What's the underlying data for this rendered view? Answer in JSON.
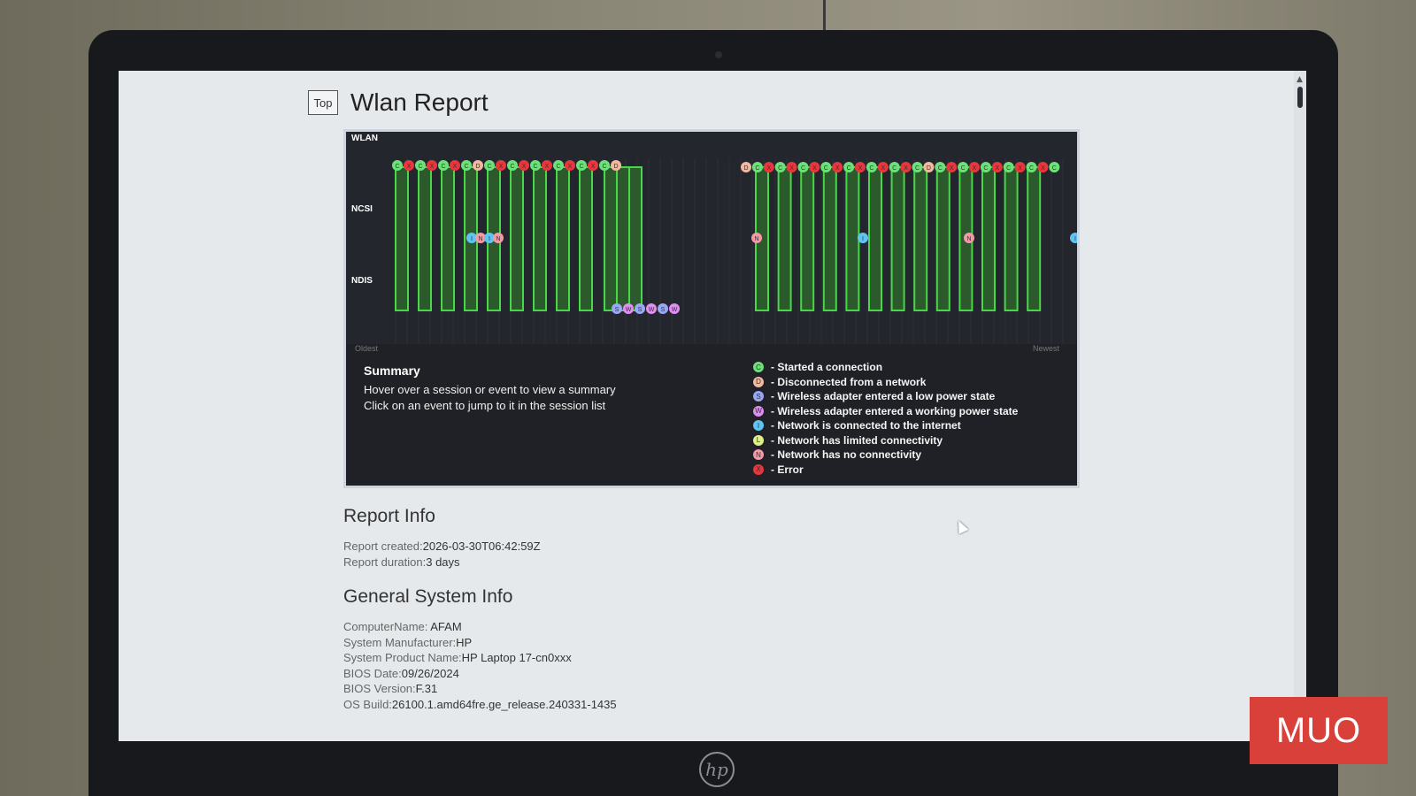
{
  "header": {
    "top_button": "Top",
    "title": "Wlan Report"
  },
  "chart": {
    "row_labels": {
      "wlan": "WLAN",
      "ncsi": "NCSI",
      "ndis": "NDIS"
    },
    "axis": {
      "oldest": "Oldest",
      "newest": "Newest"
    },
    "left_events_wlan": [
      "C",
      "X",
      "C",
      "X",
      "C",
      "X",
      "C",
      "D",
      "C",
      "X",
      "C",
      "X",
      "C",
      "X",
      "C",
      "X",
      "C",
      "X",
      "C",
      "D"
    ],
    "left_events_ncsi": [
      "I",
      "N",
      "I",
      "N"
    ],
    "left_events_ndis": [
      "S",
      "W",
      "S",
      "W",
      "S",
      "W"
    ],
    "right_events_wlan": [
      "D",
      "C",
      "X",
      "C",
      "X",
      "C",
      "X",
      "C",
      "X",
      "C",
      "X",
      "C",
      "X",
      "C",
      "X",
      "C",
      "D",
      "C",
      "X",
      "C",
      "X",
      "C",
      "X",
      "C",
      "X",
      "C",
      "X",
      "C"
    ],
    "right_events_ncsi": [
      "N",
      "I",
      "N",
      "I"
    ]
  },
  "summary": {
    "title": "Summary",
    "line1": "Hover over a session or event to view a summary",
    "line2": "Click on an event to jump to it in the session list"
  },
  "legend": [
    {
      "code": "C",
      "label": "- Started a connection",
      "color": "#6ee07a"
    },
    {
      "code": "D",
      "label": "- Disconnected from a network",
      "color": "#f2b9a0"
    },
    {
      "code": "S",
      "label": "- Wireless adapter entered a low power state",
      "color": "#9aa7f3"
    },
    {
      "code": "W",
      "label": "- Wireless adapter entered a working power state",
      "color": "#e08ef2"
    },
    {
      "code": "I",
      "label": "- Network is connected to the internet",
      "color": "#5fc4f2"
    },
    {
      "code": "L",
      "label": "- Network has limited connectivity",
      "color": "#dff08a"
    },
    {
      "code": "N",
      "label": "- Network has no connectivity",
      "color": "#f29aa8"
    },
    {
      "code": "X",
      "label": "- Error",
      "color": "#e8363d"
    }
  ],
  "report_info": {
    "title": "Report Info",
    "created_label": "Report created:",
    "created_value": "2026-03-30T06:42:59Z",
    "duration_label": "Report duration:",
    "duration_value": "3 days"
  },
  "system_info": {
    "title": "General System Info",
    "rows": [
      {
        "label": "ComputerName: ",
        "value": "AFAM"
      },
      {
        "label": "System Manufacturer:",
        "value": "HP"
      },
      {
        "label": "System Product Name:",
        "value": "HP Laptop 17-cn0xxx"
      },
      {
        "label": "BIOS Date:",
        "value": "09/26/2024"
      },
      {
        "label": "BIOS Version:",
        "value": "F.31"
      },
      {
        "label": "OS Build:",
        "value": "26100.1.amd64fre.ge_release.240331-1435"
      }
    ]
  },
  "watermark": "MUO",
  "device_logo": "hp"
}
